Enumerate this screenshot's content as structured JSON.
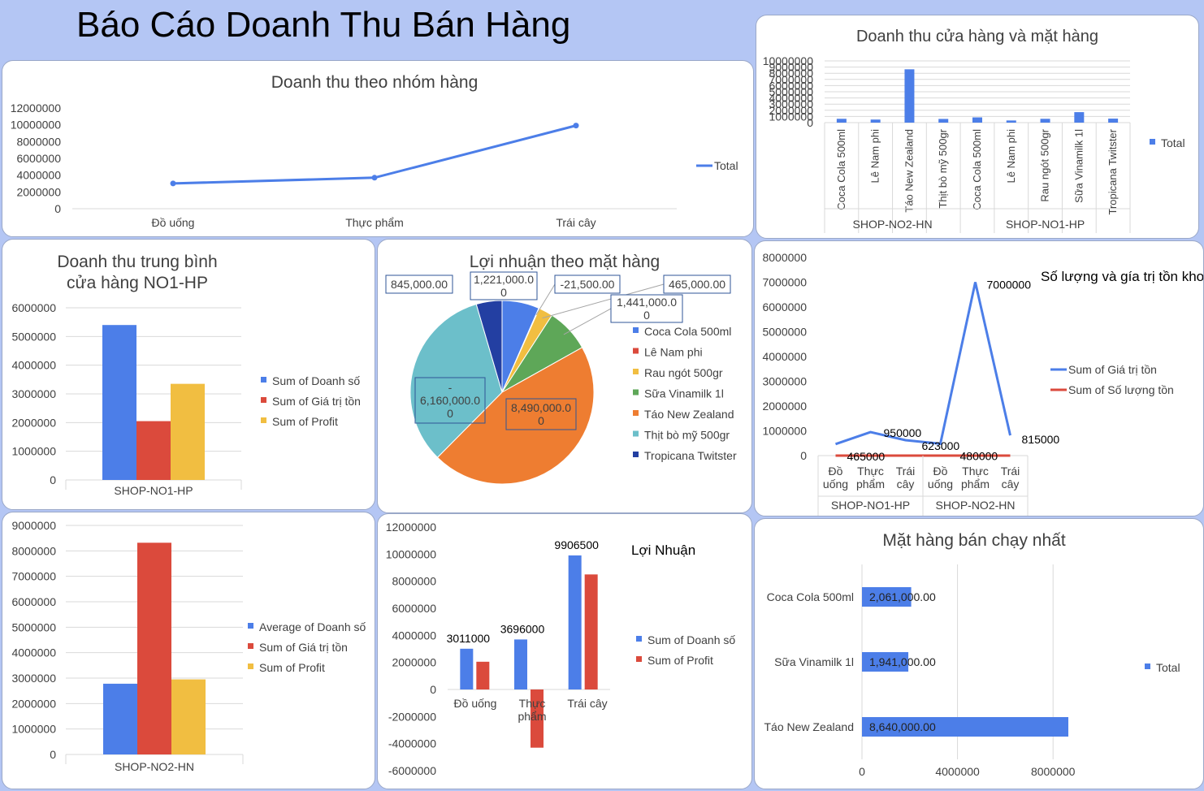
{
  "report_title": "Báo Cáo Doanh Thu Bán Hàng",
  "colors": {
    "blue": "#4c7ee8",
    "red": "#db4a3c",
    "yellow": "#f1be41",
    "green": "#5ea758",
    "orange": "#ee7d31",
    "teal": "#6cbfca",
    "navy": "#233fa2",
    "grid": "#d9d9d9",
    "text": "#404040"
  },
  "chart_data": [
    {
      "id": "c1",
      "type": "line",
      "title": "Doanh thu theo nhóm hàng",
      "categories": [
        "Đồ uống",
        "Thực phẩm",
        "Trái cây"
      ],
      "series": [
        {
          "name": "Total",
          "values": [
            3011000,
            3696000,
            9906500
          ]
        }
      ],
      "yticks": [
        0,
        2000000,
        4000000,
        6000000,
        8000000,
        10000000,
        12000000
      ],
      "ylim": [
        0,
        12000000
      ],
      "grid": false,
      "legend": "right"
    },
    {
      "id": "c2",
      "type": "bar",
      "title": "Doanh thu cửa hàng và mặt hàng",
      "groups": [
        {
          "name": "SHOP-NO2-HN",
          "categories": [
            "Coca Cola 500ml",
            "Lê Nam phi",
            "Táo New Zealand",
            "Thịt bò mỹ 500gr"
          ]
        },
        {
          "name": "SHOP-NO1-HP",
          "categories": [
            "Coca Cola 500ml",
            "Lê Nam phi",
            "Rau ngót 500gr",
            "Sữa Vinamilk 1l",
            "Tropicana Twitster"
          ]
        }
      ],
      "series": [
        {
          "name": "Total",
          "values": [
            620000,
            500000,
            8640000,
            600000,
            850000,
            350000,
            620000,
            1700000,
            650000
          ]
        }
      ],
      "yticks": [
        0,
        1000000,
        2000000,
        3000000,
        4000000,
        5000000,
        6000000,
        7000000,
        8000000,
        9000000,
        10000000
      ],
      "ylim": [
        0,
        10000000
      ],
      "grid": true,
      "legend": "right"
    },
    {
      "id": "c3",
      "type": "bar",
      "title": [
        "Doanh thu trung bình",
        "cửa hàng NO1-HP"
      ],
      "categories": [
        "SHOP-NO1-HP"
      ],
      "series": [
        {
          "name": "Sum of Doanh số",
          "values": [
            5400000
          ]
        },
        {
          "name": "Sum of Giá trị tồn",
          "values": [
            2050000
          ]
        },
        {
          "name": "Sum of Profit",
          "values": [
            3350000
          ]
        }
      ],
      "yticks": [
        0,
        1000000,
        2000000,
        3000000,
        4000000,
        5000000,
        6000000
      ],
      "ylim": [
        0,
        6000000
      ],
      "grid": true,
      "legend": "right"
    },
    {
      "id": "c4",
      "type": "pie",
      "title": "Lợi nhuận theo mặt hàng",
      "slices": [
        {
          "name": "Coca Cola 500ml",
          "value": 1221000
        },
        {
          "name": "Lê Nam phi",
          "value": 21500
        },
        {
          "name": "Rau ngót 500gr",
          "value": 465000
        },
        {
          "name": "Sữa Vinamilk 1l",
          "value": 1441000
        },
        {
          "name": "Táo New Zealand",
          "value": 8490000
        },
        {
          "name": "Thịt bò mỹ 500gr",
          "value": 6160000
        },
        {
          "name": "Tropicana Twitster",
          "value": 845000
        }
      ],
      "data_labels": [
        {
          "lines": [
            "1,221,000.0",
            "0"
          ]
        },
        {
          "lines": [
            "-21,500.00"
          ]
        },
        {
          "lines": [
            "465,000.00"
          ]
        },
        {
          "lines": [
            "1,441,000.0",
            "0"
          ]
        },
        {
          "lines": [
            "8,490,000.0",
            "0"
          ]
        },
        {
          "lines": [
            "-",
            "6,160,000.0",
            "0"
          ]
        },
        {
          "lines": [
            "845,000.00"
          ]
        }
      ],
      "legend": "right"
    },
    {
      "id": "c5",
      "type": "line",
      "title": "Số lượng và gía trị tồn kho",
      "groups": [
        {
          "name": "SHOP-NO1-HP",
          "categories": [
            [
              "Đồ",
              "uống"
            ],
            [
              "Thực",
              "phẩm"
            ],
            [
              "Trái",
              "cây"
            ]
          ]
        },
        {
          "name": "SHOP-NO2-HN",
          "categories": [
            [
              "Đồ",
              "uống"
            ],
            [
              "Thực",
              "phẩm"
            ],
            [
              "Trái",
              "cây"
            ]
          ]
        }
      ],
      "series": [
        {
          "name": "Sum of Giá trị tồn",
          "values": [
            465000,
            950000,
            623000,
            480000,
            7000000,
            815000
          ]
        },
        {
          "name": "Sum of Số lượng tồn",
          "values": [
            500,
            800,
            600,
            450,
            900,
            700
          ]
        }
      ],
      "value_labels": [
        "465000",
        "950000",
        "623000",
        "480000",
        "7000000",
        "815000"
      ],
      "yticks": [
        0,
        1000000,
        2000000,
        3000000,
        4000000,
        5000000,
        6000000,
        7000000,
        8000000
      ],
      "ylim": [
        0,
        8000000
      ],
      "grid": false,
      "legend": "right"
    },
    {
      "id": "c6",
      "type": "bar",
      "categories": [
        "SHOP-NO2-HN"
      ],
      "series": [
        {
          "name": "Average of Doanh số",
          "values": [
            2780000
          ]
        },
        {
          "name": "Sum of Giá trị tồn",
          "values": [
            8320000
          ]
        },
        {
          "name": "Sum of Profit",
          "values": [
            2950000
          ]
        }
      ],
      "yticks": [
        0,
        1000000,
        2000000,
        3000000,
        4000000,
        5000000,
        6000000,
        7000000,
        8000000,
        9000000
      ],
      "ylim": [
        0,
        9000000
      ],
      "grid": true,
      "legend": "right"
    },
    {
      "id": "c7",
      "type": "bar",
      "title": "Lợi Nhuận",
      "categories": [
        "Đồ uống",
        "Thực phẩm",
        "Trái cây"
      ],
      "series": [
        {
          "name": "Sum of Doanh số",
          "values": [
            3011000,
            3696000,
            9906500
          ]
        },
        {
          "name": "Sum of Profit",
          "values": [
            2050000,
            -4300000,
            8500000
          ]
        }
      ],
      "value_labels": [
        "3011000",
        "3696000",
        "9906500"
      ],
      "yticks": [
        -6000000,
        -4000000,
        -2000000,
        0,
        2000000,
        4000000,
        6000000,
        8000000,
        10000000,
        12000000
      ],
      "ylim": [
        -6000000,
        12000000
      ],
      "grid": false,
      "legend": "right"
    },
    {
      "id": "c8",
      "type": "bar",
      "orientation": "horizontal",
      "title": "Mặt hàng bán chạy nhất",
      "categories": [
        "Coca Cola 500ml",
        "Sữa Vinamilk 1l",
        "Táo New Zealand"
      ],
      "series": [
        {
          "name": "Total",
          "values": [
            2061000,
            1941000,
            8640000
          ]
        }
      ],
      "value_labels": [
        "2,061,000.00",
        "1,941,000.00",
        "8,640,000.00"
      ],
      "xticks": [
        0,
        4000000,
        8000000
      ],
      "xlim": [
        0,
        10000000
      ],
      "grid": true,
      "legend": "right"
    }
  ]
}
